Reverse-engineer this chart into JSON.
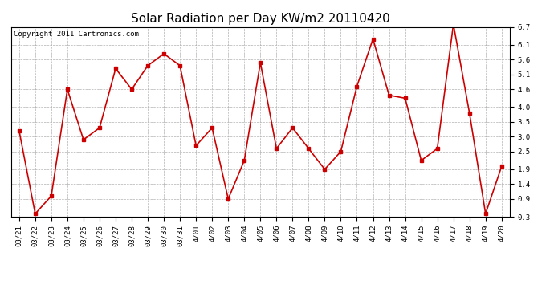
{
  "title": "Solar Radiation per Day KW/m2 20110420",
  "copyright_text": "Copyright 2011 Cartronics.com",
  "labels": [
    "03/21",
    "03/22",
    "03/23",
    "03/24",
    "03/25",
    "03/26",
    "03/27",
    "03/28",
    "03/29",
    "03/30",
    "03/31",
    "4/01",
    "4/02",
    "4/03",
    "4/04",
    "4/05",
    "4/06",
    "4/07",
    "4/08",
    "4/09",
    "4/10",
    "4/11",
    "4/12",
    "4/13",
    "4/14",
    "4/15",
    "4/16",
    "4/17",
    "4/18",
    "4/19",
    "4/20"
  ],
  "values": [
    3.2,
    0.4,
    1.0,
    4.6,
    2.9,
    3.3,
    5.3,
    4.6,
    5.4,
    5.8,
    5.4,
    2.7,
    3.3,
    0.9,
    2.2,
    5.5,
    2.6,
    3.3,
    2.6,
    1.9,
    2.5,
    4.7,
    6.3,
    4.4,
    4.3,
    2.2,
    2.6,
    6.8,
    3.8,
    0.4,
    2.0
  ],
  "ylim_min": 0.3,
  "ylim_max": 6.7,
  "yticks": [
    0.3,
    0.9,
    1.4,
    1.9,
    2.5,
    3.0,
    3.5,
    4.0,
    4.6,
    5.1,
    5.6,
    6.1,
    6.7
  ],
  "line_color": "#cc0000",
  "marker": "s",
  "marker_size": 3,
  "bg_color": "#ffffff",
  "plot_bg_color": "#ffffff",
  "grid_color": "#aaaaaa",
  "title_fontsize": 11,
  "tick_fontsize": 6.5,
  "copyright_fontsize": 6.5
}
